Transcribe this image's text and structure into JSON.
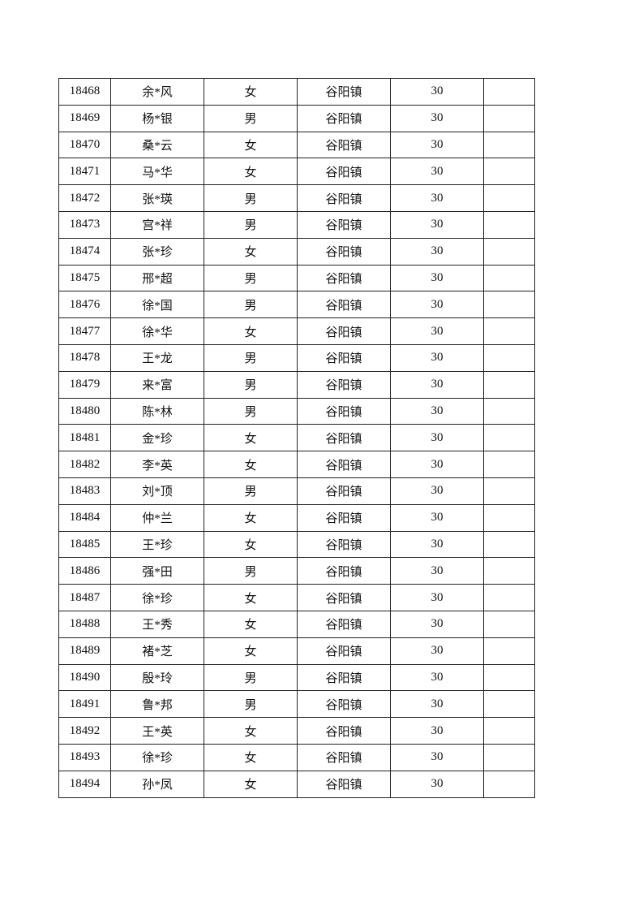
{
  "rows": [
    [
      "18468",
      "余*风",
      "女",
      "谷阳镇",
      "30",
      ""
    ],
    [
      "18469",
      "杨*银",
      "男",
      "谷阳镇",
      "30",
      ""
    ],
    [
      "18470",
      "桑*云",
      "女",
      "谷阳镇",
      "30",
      ""
    ],
    [
      "18471",
      "马*华",
      "女",
      "谷阳镇",
      "30",
      ""
    ],
    [
      "18472",
      "张*瑛",
      "男",
      "谷阳镇",
      "30",
      ""
    ],
    [
      "18473",
      "宫*祥",
      "男",
      "谷阳镇",
      "30",
      ""
    ],
    [
      "18474",
      "张*珍",
      "女",
      "谷阳镇",
      "30",
      ""
    ],
    [
      "18475",
      "邢*超",
      "男",
      "谷阳镇",
      "30",
      ""
    ],
    [
      "18476",
      "徐*国",
      "男",
      "谷阳镇",
      "30",
      ""
    ],
    [
      "18477",
      "徐*华",
      "女",
      "谷阳镇",
      "30",
      ""
    ],
    [
      "18478",
      "王*龙",
      "男",
      "谷阳镇",
      "30",
      ""
    ],
    [
      "18479",
      "来*富",
      "男",
      "谷阳镇",
      "30",
      ""
    ],
    [
      "18480",
      "陈*林",
      "男",
      "谷阳镇",
      "30",
      ""
    ],
    [
      "18481",
      "金*珍",
      "女",
      "谷阳镇",
      "30",
      ""
    ],
    [
      "18482",
      "李*英",
      "女",
      "谷阳镇",
      "30",
      ""
    ],
    [
      "18483",
      "刘*顶",
      "男",
      "谷阳镇",
      "30",
      ""
    ],
    [
      "18484",
      "仲*兰",
      "女",
      "谷阳镇",
      "30",
      ""
    ],
    [
      "18485",
      "王*珍",
      "女",
      "谷阳镇",
      "30",
      ""
    ],
    [
      "18486",
      "强*田",
      "男",
      "谷阳镇",
      "30",
      ""
    ],
    [
      "18487",
      "徐*珍",
      "女",
      "谷阳镇",
      "30",
      ""
    ],
    [
      "18488",
      "王*秀",
      "女",
      "谷阳镇",
      "30",
      ""
    ],
    [
      "18489",
      "褚*芝",
      "女",
      "谷阳镇",
      "30",
      ""
    ],
    [
      "18490",
      "殷*玲",
      "男",
      "谷阳镇",
      "30",
      ""
    ],
    [
      "18491",
      "鲁*邦",
      "男",
      "谷阳镇",
      "30",
      ""
    ],
    [
      "18492",
      "王*英",
      "女",
      "谷阳镇",
      "30",
      ""
    ],
    [
      "18493",
      "徐*珍",
      "女",
      "谷阳镇",
      "30",
      ""
    ],
    [
      "18494",
      "孙*凤",
      "女",
      "谷阳镇",
      "30",
      ""
    ]
  ]
}
